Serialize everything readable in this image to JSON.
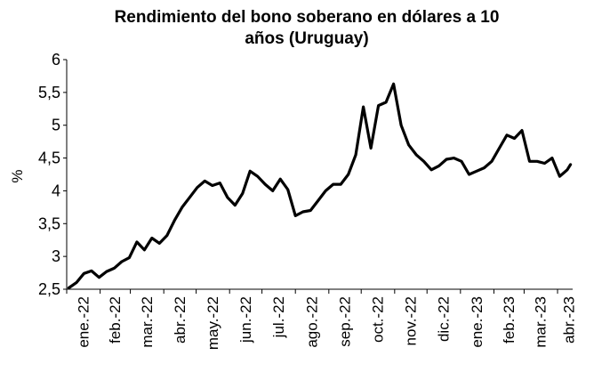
{
  "chart_data": {
    "type": "line",
    "title": "Rendimiento del bono soberano en dólares a 10",
    "title_line2": "años (Uruguay)",
    "xlabel": "",
    "ylabel": "%",
    "ylim": [
      2.5,
      6
    ],
    "yticks": [
      "2,5",
      "3",
      "3,5",
      "4",
      "4,5",
      "5",
      "5,5",
      "6"
    ],
    "grid": false,
    "legend": "none",
    "line_color": "#000000",
    "x_tick_labels": [
      "ene.-22",
      "feb.-22",
      "mar.-22",
      "abr.-22",
      "may.-22",
      "jun.-22",
      "jul.-22",
      "ago.-22",
      "sep.-22",
      "oct.-22",
      "nov.-22",
      "dic.-22",
      "ene.-23",
      "feb.-23",
      "mar.-23",
      "abr.-23"
    ],
    "series": [
      {
        "x": [
          "2022-01-03",
          "2022-01-10",
          "2022-01-17",
          "2022-01-24",
          "2022-01-31",
          "2022-02-07",
          "2022-02-14",
          "2022-02-21",
          "2022-02-28",
          "2022-03-07",
          "2022-03-14",
          "2022-03-21",
          "2022-03-28",
          "2022-04-04",
          "2022-04-11",
          "2022-04-18",
          "2022-04-25",
          "2022-05-02",
          "2022-05-09",
          "2022-05-16",
          "2022-05-23",
          "2022-05-30",
          "2022-06-06",
          "2022-06-13",
          "2022-06-20",
          "2022-06-27",
          "2022-07-04",
          "2022-07-11",
          "2022-07-18",
          "2022-07-25",
          "2022-08-01",
          "2022-08-08",
          "2022-08-15",
          "2022-08-22",
          "2022-08-29",
          "2022-09-05",
          "2022-09-12",
          "2022-09-19",
          "2022-09-26",
          "2022-10-03",
          "2022-10-10",
          "2022-10-17",
          "2022-10-24",
          "2022-10-31",
          "2022-11-07",
          "2022-11-14",
          "2022-11-21",
          "2022-11-28",
          "2022-12-05",
          "2022-12-12",
          "2022-12-19",
          "2022-12-26",
          "2023-01-02",
          "2023-01-09",
          "2023-01-16",
          "2023-01-23",
          "2023-01-30",
          "2023-02-06",
          "2023-02-13",
          "2023-02-20",
          "2023-02-27",
          "2023-03-06",
          "2023-03-13",
          "2023-03-20",
          "2023-03-27",
          "2023-04-03",
          "2023-04-10",
          "2023-04-13"
        ],
        "values": [
          2.52,
          2.6,
          2.74,
          2.78,
          2.68,
          2.77,
          2.82,
          2.92,
          2.98,
          3.22,
          3.1,
          3.28,
          3.2,
          3.32,
          3.55,
          3.75,
          3.9,
          4.05,
          4.15,
          4.08,
          4.12,
          3.9,
          3.78,
          3.96,
          4.3,
          4.22,
          4.1,
          4.0,
          4.18,
          4.02,
          3.62,
          3.68,
          3.7,
          3.85,
          4.0,
          4.1,
          4.1,
          4.25,
          4.55,
          5.28,
          4.65,
          5.3,
          5.35,
          5.63,
          5.0,
          4.7,
          4.55,
          4.45,
          4.32,
          4.38,
          4.48,
          4.5,
          4.45,
          4.25,
          4.3,
          4.35,
          4.45,
          4.65,
          4.85,
          4.8,
          4.92,
          4.45,
          4.45,
          4.42,
          4.5,
          4.22,
          4.32,
          4.4
        ]
      }
    ]
  }
}
